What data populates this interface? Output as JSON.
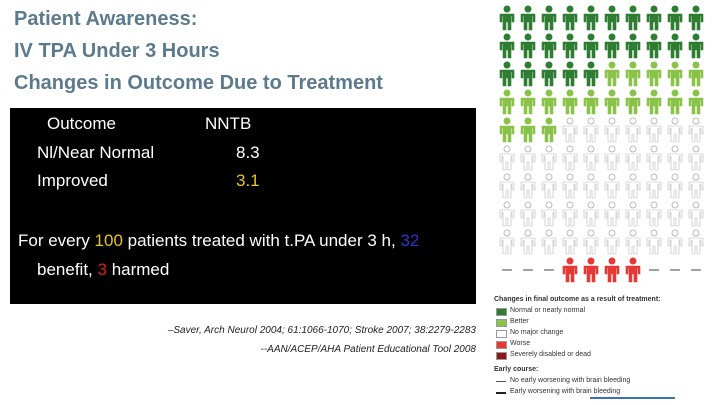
{
  "title": {
    "lines": [
      "Patient Awareness:",
      "IV TPA Under 3 Hours",
      "Changes in Outcome Due to Treatment"
    ]
  },
  "table": {
    "header": [
      "Outcome",
      "NNTB"
    ],
    "rows": [
      [
        "Nl/Near Normal",
        "8.3"
      ],
      [
        "Improved",
        "3.1"
      ]
    ]
  },
  "summary": {
    "line1": [
      "For every ",
      "100",
      " patients treated with t.PA under 3 h, ",
      "32"
    ],
    "line2": [
      "benefit, ",
      "3",
      " harmed"
    ]
  },
  "citations": [
    "–Saver, Arch Neurol 2004; 61:1066-1070; Stroke 2007; 38:2279-2283",
    "--AAN/ACEP/AHA Patient Educational Tool 2008"
  ],
  "legend": {
    "heading": "Changes in final outcome as a result of treatment:",
    "items": [
      "Normal or nearly normal",
      "Better",
      "No major change",
      "Worse",
      "Severely disabled or dead"
    ],
    "early_heading": "Early course:",
    "early_items": [
      "No early worsening with brain bleeding",
      "Early worsening with brain bleeding"
    ]
  }
}
